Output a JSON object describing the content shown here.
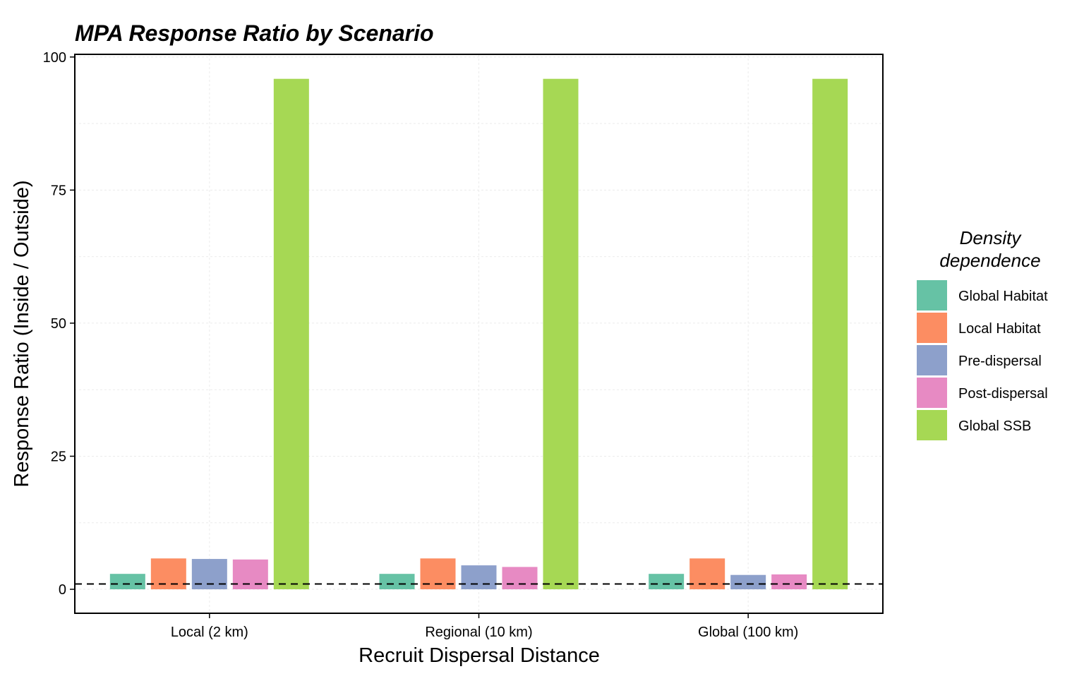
{
  "chart_data": {
    "type": "bar",
    "title": "MPA Response Ratio by Scenario",
    "xlabel": "Recruit Dispersal Distance",
    "ylabel": "Response Ratio (Inside / Outside)",
    "categories": [
      "Local (2 km)",
      "Regional (10 km)",
      "Global (100 km)"
    ],
    "ylim": [
      -4.5,
      100.5
    ],
    "yticks": [
      0,
      25,
      50,
      75,
      100
    ],
    "grid": true,
    "reference_line": {
      "y": 1,
      "style": "dashed",
      "color": "#000000"
    },
    "legend": {
      "title": "Density dependence",
      "placement": "right"
    },
    "series": [
      {
        "name": "Global Habitat",
        "color": "#66C2A5",
        "values": [
          2.9,
          2.9,
          2.9
        ]
      },
      {
        "name": "Local Habitat",
        "color": "#FC8D62",
        "values": [
          5.8,
          5.8,
          5.8
        ]
      },
      {
        "name": "Pre-dispersal",
        "color": "#8DA0CB",
        "values": [
          5.7,
          4.5,
          2.7
        ]
      },
      {
        "name": "Post-dispersal",
        "color": "#E78AC3",
        "values": [
          5.6,
          4.2,
          2.8
        ]
      },
      {
        "name": "Global SSB",
        "color": "#A6D854",
        "values": [
          95.9,
          95.9,
          95.9
        ]
      }
    ]
  }
}
